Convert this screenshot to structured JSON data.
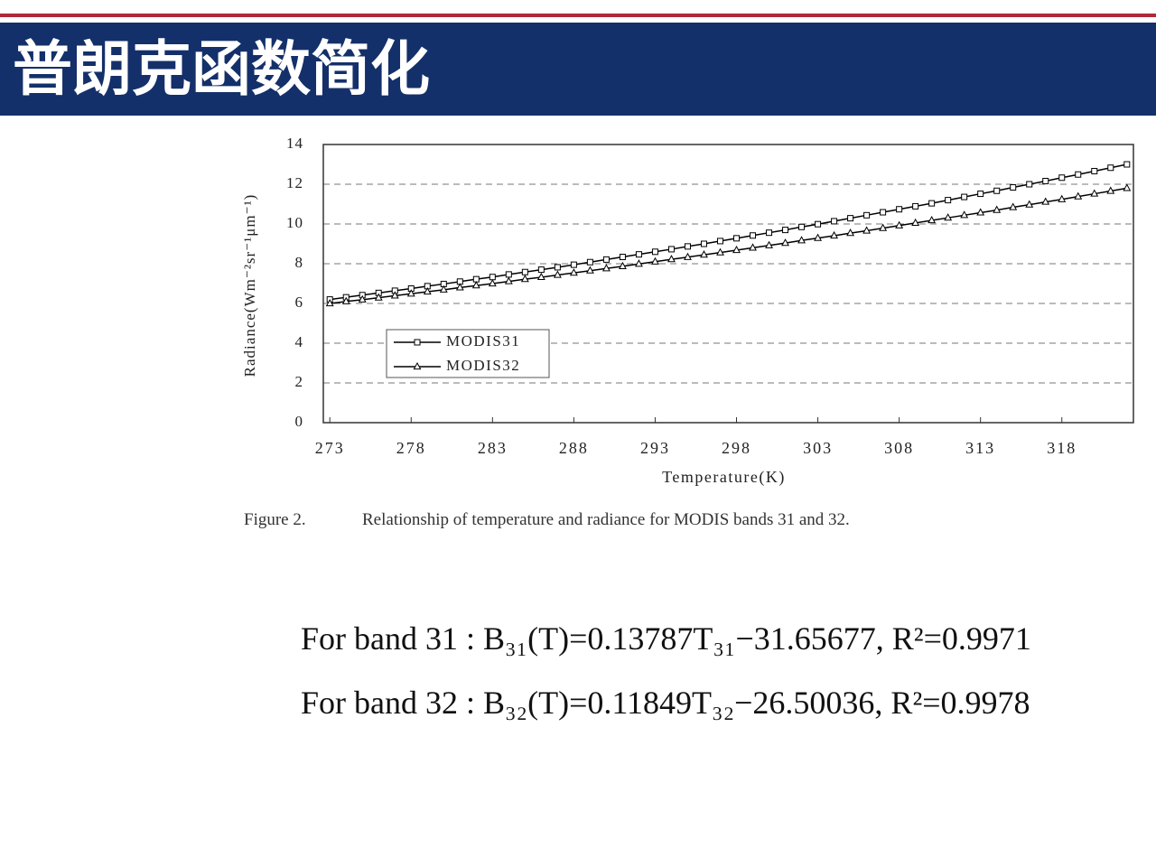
{
  "slide": {
    "title": "普朗克函数简化"
  },
  "chart_data": {
    "type": "line",
    "xlabel": "Temperature(K)",
    "ylabel": "Radiance(Wm⁻²sr⁻¹μm⁻¹)",
    "x": [
      273,
      274,
      275,
      276,
      277,
      278,
      279,
      280,
      281,
      282,
      283,
      284,
      285,
      286,
      287,
      288,
      289,
      290,
      291,
      292,
      293,
      294,
      295,
      296,
      297,
      298,
      299,
      300,
      301,
      302,
      303,
      304,
      305,
      306,
      307,
      308,
      309,
      310,
      311,
      312,
      313,
      314,
      315,
      316,
      317,
      318,
      319,
      320,
      321,
      322
    ],
    "series": [
      {
        "name": "MODIS31",
        "color": "#000000",
        "marker": "square",
        "values": [
          6.2,
          6.31,
          6.42,
          6.53,
          6.64,
          6.75,
          6.87,
          6.98,
          7.1,
          7.22,
          7.33,
          7.46,
          7.58,
          7.7,
          7.82,
          7.95,
          8.08,
          8.21,
          8.34,
          8.47,
          8.6,
          8.73,
          8.87,
          9.0,
          9.14,
          9.28,
          9.42,
          9.56,
          9.7,
          9.85,
          9.99,
          10.14,
          10.29,
          10.44,
          10.59,
          10.74,
          10.89,
          11.04,
          11.2,
          11.36,
          11.52,
          11.67,
          11.84,
          12.0,
          12.16,
          12.33,
          12.49,
          12.66,
          12.83,
          13.0
        ]
      },
      {
        "name": "MODIS32",
        "color": "#000000",
        "marker": "triangle",
        "values": [
          6.0,
          6.1,
          6.19,
          6.29,
          6.39,
          6.49,
          6.59,
          6.69,
          6.8,
          6.9,
          7.0,
          7.11,
          7.22,
          7.32,
          7.43,
          7.54,
          7.65,
          7.76,
          7.87,
          7.99,
          8.1,
          8.22,
          8.33,
          8.45,
          8.56,
          8.68,
          8.8,
          8.92,
          9.04,
          9.17,
          9.29,
          9.41,
          9.54,
          9.66,
          9.79,
          9.92,
          10.05,
          10.18,
          10.31,
          10.44,
          10.57,
          10.7,
          10.84,
          10.97,
          11.11,
          11.24,
          11.38,
          11.52,
          11.66,
          11.8
        ]
      }
    ],
    "xlim": [
      272.6,
      322.4
    ],
    "xticks": [
      273,
      278,
      283,
      288,
      293,
      298,
      303,
      308,
      313,
      318
    ],
    "ylim": [
      0,
      14
    ],
    "yticks": [
      0,
      2,
      4,
      6,
      8,
      10,
      12,
      14
    ],
    "grid": true,
    "legend": "lower-left"
  },
  "caption": {
    "label": "Figure 2.",
    "text": "Relationship of temperature and radiance for MODIS bands 31 and 32."
  },
  "equations": [
    "For band 31 : B₃₁(T)=0.13787T₃₁−31.65677, R²=0.9971",
    "For band 32 : B₃₂(T)=0.11849T₃₂−26.50036, R²=0.9978"
  ]
}
